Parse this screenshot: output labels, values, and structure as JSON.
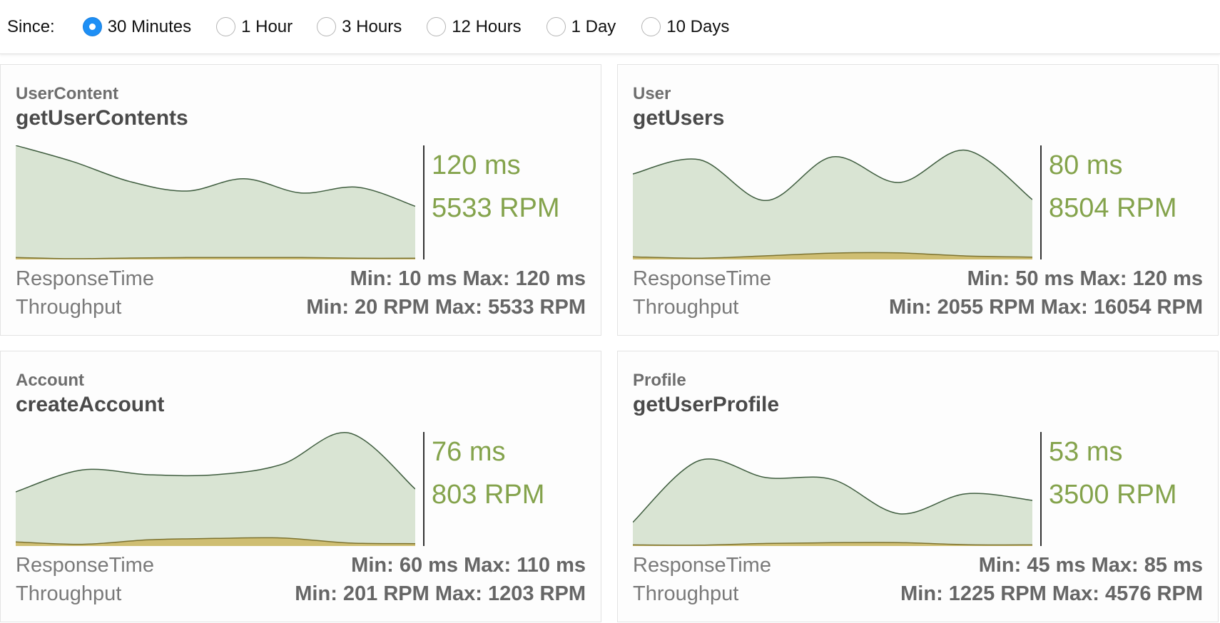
{
  "since": {
    "label": "Since:",
    "options": [
      {
        "label": "30 Minutes",
        "checked": true
      },
      {
        "label": "1 Hour",
        "checked": false
      },
      {
        "label": "3 Hours",
        "checked": false
      },
      {
        "label": "12 Hours",
        "checked": false
      },
      {
        "label": "1 Day",
        "checked": false
      },
      {
        "label": "10 Days",
        "checked": false
      }
    ]
  },
  "colors": {
    "response_fill": "#d9e4d3",
    "response_line": "#3f5d3f",
    "throughput_fill": "#cfbe72",
    "throughput_line": "#7d7330",
    "value_text": "#84a34c",
    "radio_selected": "#1e8ff5"
  },
  "cards": [
    {
      "category": "UserContent",
      "method": "getUserContents",
      "current_rt": "120 ms",
      "current_rpm": "5533 RPM",
      "rt_label": "ResponseTime",
      "tp_label": "Throughput",
      "rt_stats": "Min: 10 ms Max: 120 ms",
      "tp_stats": "Min: 20 RPM Max: 5533 RPM",
      "response_series": [
        120,
        103,
        82,
        72,
        85,
        70,
        76,
        56
      ],
      "throughput_series": [
        2.1,
        0.8,
        1.5,
        2.0,
        2.1,
        2.0,
        1.3,
        1.3
      ]
    },
    {
      "category": "User",
      "method": "getUsers",
      "current_rt": "80 ms",
      "current_rpm": "8504 RPM",
      "rt_label": "ResponseTime",
      "tp_label": "Throughput",
      "rt_stats": "Min: 50 ms Max: 120 ms",
      "tp_stats": "Min: 2055 RPM Max: 16054 RPM",
      "response_series": [
        90,
        105,
        62,
        108,
        81,
        115,
        63
      ],
      "throughput_series": [
        2.8,
        1.3,
        3.8,
        6.7,
        6.9,
        3.7,
        2.5
      ]
    },
    {
      "category": "Account",
      "method": "createAccount",
      "current_rt": "76 ms",
      "current_rpm": "803 RPM",
      "rt_label": "ResponseTime",
      "tp_label": "Throughput",
      "rt_stats": "Min: 60 ms Max: 110 ms",
      "tp_stats": "Min: 201 RPM Max: 1203 RPM",
      "response_series": [
        57,
        80,
        75,
        75,
        86,
        119,
        60
      ],
      "throughput_series": [
        4.3,
        1.8,
        6.5,
        8.0,
        8.5,
        3.2,
        2.5
      ]
    },
    {
      "category": "Profile",
      "method": "getUserProfile",
      "current_rt": "53 ms",
      "current_rpm": "3500 RPM",
      "rt_label": "ResponseTime",
      "tp_label": "Throughput",
      "rt_stats": "Min: 45 ms Max: 85 ms",
      "tp_stats": "Min: 1225 RPM Max: 4576 RPM",
      "response_series": [
        25,
        90,
        72,
        70,
        34,
        55,
        48
      ],
      "throughput_series": [
        1.2,
        0.9,
        2.7,
        3.5,
        3.6,
        1.4,
        1.2
      ]
    }
  ]
}
